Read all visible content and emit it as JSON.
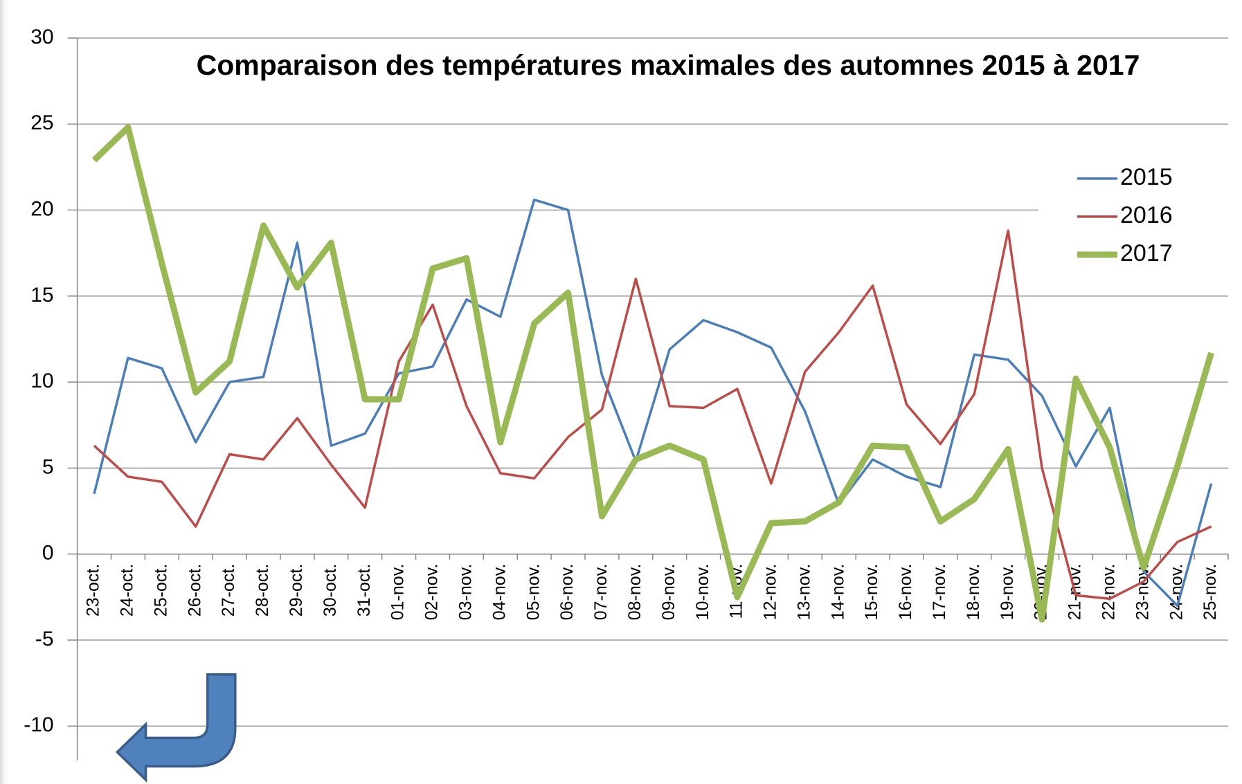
{
  "chart_data": {
    "type": "line",
    "title": "Comparaison des températures maximales des automnes 2015 à 2017",
    "categories": [
      "23-oct.",
      "24-oct.",
      "25-oct.",
      "26-oct.",
      "27-oct.",
      "28-oct.",
      "29-oct.",
      "30-oct.",
      "31-oct.",
      "01-nov.",
      "02-nov.",
      "03-nov.",
      "04-nov.",
      "05-nov.",
      "06-nov.",
      "07-nov.",
      "08-nov.",
      "09-nov.",
      "10-nov.",
      "11-nov.",
      "12-nov.",
      "13-nov.",
      "14-nov.",
      "15-nov.",
      "16-nov.",
      "17-nov.",
      "18-nov.",
      "19-nov.",
      "20-nov.",
      "21-nov.",
      "22-nov.",
      "23-nov.",
      "24-nov.",
      "25-nov."
    ],
    "series": [
      {
        "name": "2015",
        "color": "#4a7ebb",
        "values": [
          3.5,
          11.4,
          10.8,
          6.5,
          10,
          10.3,
          18.1,
          6.3,
          7,
          10.5,
          10.9,
          14.8,
          13.8,
          20.6,
          20,
          10.4,
          5.4,
          11.9,
          13.6,
          12.9,
          12,
          8.3,
          2.9,
          5.5,
          4.5,
          3.9,
          11.6,
          11.3,
          9.2,
          5.1,
          8.5,
          -1,
          -3,
          4.1
        ]
      },
      {
        "name": "2016",
        "color": "#be4b48",
        "values": [
          6.3,
          4.5,
          4.2,
          1.6,
          5.8,
          5.5,
          7.9,
          5.2,
          2.7,
          11.2,
          14.5,
          8.6,
          4.7,
          4.4,
          6.8,
          8.4,
          16,
          8.6,
          8.5,
          9.6,
          4.1,
          10.6,
          12.9,
          15.6,
          8.7,
          6.4,
          9.3,
          18.8,
          5,
          -2.4,
          -2.6,
          -1.6,
          0.7,
          1.6
        ]
      },
      {
        "name": "2017",
        "color": "#98b954",
        "values": [
          22.9,
          24.8,
          16.9,
          9.4,
          11.2,
          19.1,
          15.5,
          18.1,
          9,
          9,
          16.6,
          17.2,
          6.5,
          13.4,
          15.2,
          2.2,
          5.5,
          6.3,
          5.5,
          -2.5,
          1.8,
          1.9,
          3,
          6.3,
          6.2,
          1.9,
          3.2,
          6.1,
          -3.8,
          10.2,
          6.2,
          -0.8,
          5.1,
          11.7
        ]
      }
    ],
    "ylim": [
      -12,
      30
    ],
    "yticks": [
      -10,
      -5,
      0,
      5,
      10,
      15,
      20,
      25,
      30
    ],
    "grid": true,
    "legend": "top-right"
  }
}
